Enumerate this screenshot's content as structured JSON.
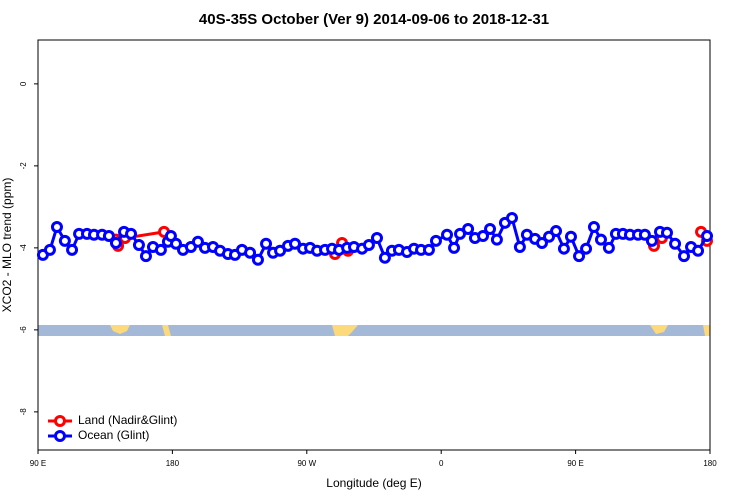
{
  "chart_data": {
    "type": "line",
    "title": "40S-35S October (Ver 9)   2014-09-06 to 2018-12-31",
    "x_label": "Longitude (deg E)",
    "y_label": "XCO2 - MLO trend (ppm)",
    "xlim": [
      90,
      540
    ],
    "xticks": [
      {
        "value": 90,
        "label": "90 E"
      },
      {
        "value": 180,
        "label": "180"
      },
      {
        "value": 270,
        "label": "90 W"
      },
      {
        "value": 360,
        "label": "0"
      },
      {
        "value": 450,
        "label": "90 E"
      },
      {
        "value": 540,
        "label": "180"
      }
    ],
    "ylim": [
      -8.93,
      1.07
    ],
    "yticks": [
      0,
      -2,
      -4,
      -6,
      -8
    ],
    "legend": "bottom-left",
    "series": [
      {
        "name": "Land (Nadir&Glint)",
        "color": "#ff0000",
        "x": [
          142.2,
          143.6,
          148.3,
          174.4,
          179,
          null,
          288.9,
          293.6,
          297.6,
          null,
          502.5,
          507.8,
          null,
          534,
          538
        ],
        "values": [
          -3.8,
          -3.95,
          -3.76,
          -3.61,
          -3.8,
          null,
          -4.15,
          -3.88,
          -4.07,
          null,
          -3.95,
          -3.76,
          null,
          -3.61,
          -3.83
        ]
      },
      {
        "name": "Ocean (Glint)",
        "color": "#0000ff",
        "x": [
          93.3,
          98,
          102.7,
          108,
          112.8,
          117.5,
          122.8,
          127.5,
          132.9,
          137.5,
          142.2,
          147.6,
          152.3,
          157.6,
          162.3,
          167,
          172.3,
          177,
          179,
          182.4,
          187.1,
          192.4,
          197.1,
          201.8,
          207.2,
          211.9,
          217.2,
          221.9,
          226.6,
          232,
          237.3,
          242.7,
          247.4,
          252.1,
          257.4,
          262.1,
          267.5,
          272.2,
          276.9,
          282.2,
          286.9,
          291.6,
          297,
          301.6,
          307,
          311.6,
          317,
          322.3,
          327,
          331.7,
          337.1,
          341.8,
          346.5,
          351.8,
          356.5,
          363.9,
          368.6,
          372.6,
          378,
          382.6,
          388,
          392.7,
          397.3,
          402.7,
          407.4,
          412.7,
          417.4,
          422.8,
          427.5,
          432.2,
          436.9,
          442.2,
          446.9,
          452.3,
          457,
          462.3,
          467,
          472.3,
          477,
          481.7,
          486.4,
          491.8,
          496.4,
          501.1,
          506.5,
          511.2,
          516.6,
          522.6,
          527.3,
          532,
          538
        ],
        "values": [
          -4.17,
          -4.05,
          -3.49,
          -3.83,
          -4.05,
          -3.66,
          -3.66,
          -3.68,
          -3.68,
          -3.71,
          -3.88,
          -3.61,
          -3.66,
          -3.93,
          -4.2,
          -3.98,
          -4.05,
          -3.85,
          -3.71,
          -3.9,
          -4.05,
          -3.98,
          -3.85,
          -4,
          -3.98,
          -4.07,
          -4.15,
          -4.17,
          -4.05,
          -4.12,
          -4.29,
          -3.9,
          -4.12,
          -4.07,
          -3.95,
          -3.9,
          -4.02,
          -4,
          -4.07,
          -4.05,
          -4.02,
          -4.05,
          -4,
          -3.98,
          -4.02,
          -3.93,
          -3.76,
          -4.24,
          -4.07,
          -4.05,
          -4.1,
          -4.02,
          -4.05,
          -4.05,
          -3.83,
          -3.68,
          -4,
          -3.66,
          -3.54,
          -3.76,
          -3.71,
          -3.54,
          -3.8,
          -3.39,
          -3.27,
          -3.98,
          -3.68,
          -3.78,
          -3.88,
          -3.73,
          -3.59,
          -4.02,
          -3.73,
          -4.2,
          -4.02,
          -3.49,
          -3.8,
          -4,
          -3.66,
          -3.66,
          -3.68,
          -3.68,
          -3.68,
          -3.83,
          -3.61,
          -3.63,
          -3.9,
          -4.2,
          -3.98,
          -4.07,
          -3.71
        ]
      }
    ]
  }
}
